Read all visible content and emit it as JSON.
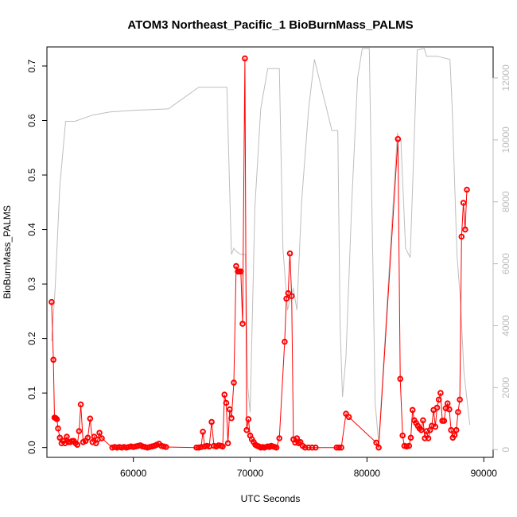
{
  "chart_data": {
    "type": "line",
    "title": "ATOM3 Northeast_Pacific_1 BioBurnMass_PALMS",
    "xlabel": "UTC Seconds",
    "ylabel": "BioBurnMass_PALMS",
    "xlim": [
      52600,
      90800
    ],
    "ylim": [
      -0.018,
      0.735
    ],
    "y2lim": [
      -250,
      13000
    ],
    "x_ticks": [
      60000,
      70000,
      80000,
      90000
    ],
    "y_ticks": [
      0.0,
      0.1,
      0.2,
      0.3,
      0.4,
      0.5,
      0.6,
      0.7
    ],
    "y2_ticks": [
      0,
      2000,
      4000,
      6000,
      8000,
      10000,
      12000
    ],
    "grid": false,
    "legend": "none",
    "colors": {
      "primary": "#ff0000",
      "secondary": "#bebebe"
    },
    "series": [
      {
        "axis": "left",
        "style": "line+points",
        "color": "#ff0000",
        "points": [
          [
            53000,
            0.267
          ],
          [
            53150,
            0.161
          ],
          [
            53250,
            0.055
          ],
          [
            53350,
            0.054
          ],
          [
            53450,
            0.052
          ],
          [
            53550,
            0.035
          ],
          [
            53700,
            0.018
          ],
          [
            53850,
            0.008
          ],
          [
            54000,
            0.012
          ],
          [
            54150,
            0.008
          ],
          [
            54300,
            0.02
          ],
          [
            54450,
            0.01
          ],
          [
            54600,
            0.01
          ],
          [
            54750,
            0.012
          ],
          [
            54900,
            0.012
          ],
          [
            55050,
            0.008
          ],
          [
            55200,
            0.005
          ],
          [
            55350,
            0.03
          ],
          [
            55500,
            0.079
          ],
          [
            55700,
            0.01
          ],
          [
            55900,
            0.012
          ],
          [
            56100,
            0.018
          ],
          [
            56300,
            0.053
          ],
          [
            56500,
            0.01
          ],
          [
            56650,
            0.02
          ],
          [
            56800,
            0.008
          ],
          [
            56950,
            0.015
          ],
          [
            57100,
            0.027
          ],
          [
            57300,
            0.017
          ],
          [
            58200,
            0.0
          ],
          [
            58400,
            0.001
          ],
          [
            58600,
            0.0
          ],
          [
            58800,
            0.001
          ],
          [
            59000,
            0.0
          ],
          [
            59200,
            0.001
          ],
          [
            59400,
            0.0
          ],
          [
            59600,
            0.001
          ],
          [
            59800,
            0.002
          ],
          [
            60000,
            0.001
          ],
          [
            60200,
            0.002
          ],
          [
            60400,
            0.003
          ],
          [
            60600,
            0.004
          ],
          [
            60800,
            0.002
          ],
          [
            61000,
            0.001
          ],
          [
            61200,
            0.0
          ],
          [
            61400,
            0.001
          ],
          [
            61600,
            0.002
          ],
          [
            61800,
            0.003
          ],
          [
            62000,
            0.005
          ],
          [
            62200,
            0.007
          ],
          [
            62400,
            0.003
          ],
          [
            62600,
            0.002
          ],
          [
            62800,
            0.001
          ],
          [
            65400,
            0.0
          ],
          [
            65600,
            0.0
          ],
          [
            65800,
            0.001
          ],
          [
            65950,
            0.029
          ],
          [
            66100,
            0.002
          ],
          [
            66300,
            0.003
          ],
          [
            66500,
            0.002
          ],
          [
            66700,
            0.047
          ],
          [
            66900,
            0.003
          ],
          [
            67100,
            0.002
          ],
          [
            67300,
            0.004
          ],
          [
            67500,
            0.003
          ],
          [
            67650,
            0.002
          ],
          [
            67800,
            0.097
          ],
          [
            67950,
            0.082
          ],
          [
            68100,
            0.008
          ],
          [
            68250,
            0.07
          ],
          [
            68400,
            0.054
          ],
          [
            68600,
            0.119
          ],
          [
            68800,
            0.333
          ],
          [
            68950,
            0.323
          ],
          [
            69050,
            0.323
          ],
          [
            69200,
            0.323
          ],
          [
            69350,
            0.227
          ],
          [
            69550,
            0.714
          ],
          [
            69700,
            0.032
          ],
          [
            69850,
            0.052
          ],
          [
            70000,
            0.022
          ],
          [
            70150,
            0.015
          ],
          [
            70300,
            0.01
          ],
          [
            70450,
            0.005
          ],
          [
            70600,
            0.003
          ],
          [
            70750,
            0.002
          ],
          [
            70900,
            0.0
          ],
          [
            71050,
            0.001
          ],
          [
            71200,
            0.0
          ],
          [
            71350,
            0.001
          ],
          [
            71500,
            0.002
          ],
          [
            71650,
            0.001
          ],
          [
            71800,
            0.003
          ],
          [
            71950,
            0.002
          ],
          [
            72100,
            0.001
          ],
          [
            72250,
            0.0
          ],
          [
            72500,
            0.017
          ],
          [
            72950,
            0.194
          ],
          [
            73100,
            0.273
          ],
          [
            73250,
            0.283
          ],
          [
            73400,
            0.356
          ],
          [
            73550,
            0.278
          ],
          [
            73700,
            0.015
          ],
          [
            73850,
            0.009
          ],
          [
            74000,
            0.017
          ],
          [
            74150,
            0.008
          ],
          [
            74300,
            0.01
          ],
          [
            74500,
            0.003
          ],
          [
            74700,
            0.0
          ],
          [
            75000,
            0.0
          ],
          [
            75300,
            0.0
          ],
          [
            75600,
            0.0
          ],
          [
            77400,
            0.0
          ],
          [
            77600,
            0.0
          ],
          [
            77800,
            0.0
          ],
          [
            78200,
            0.062
          ],
          [
            78450,
            0.056
          ],
          [
            80800,
            0.009
          ],
          [
            81000,
            0.0
          ],
          [
            82650,
            0.566
          ],
          [
            82850,
            0.126
          ],
          [
            83050,
            0.022
          ],
          [
            83200,
            0.003
          ],
          [
            83400,
            0.002
          ],
          [
            83600,
            0.003
          ],
          [
            83750,
            0.018
          ],
          [
            83900,
            0.069
          ],
          [
            84050,
            0.05
          ],
          [
            84200,
            0.045
          ],
          [
            84350,
            0.04
          ],
          [
            84500,
            0.035
          ],
          [
            84650,
            0.032
          ],
          [
            84800,
            0.05
          ],
          [
            84950,
            0.017
          ],
          [
            85100,
            0.03
          ],
          [
            85250,
            0.017
          ],
          [
            85400,
            0.032
          ],
          [
            85550,
            0.04
          ],
          [
            85700,
            0.069
          ],
          [
            85850,
            0.038
          ],
          [
            86000,
            0.073
          ],
          [
            86150,
            0.088
          ],
          [
            86300,
            0.1
          ],
          [
            86450,
            0.049
          ],
          [
            86600,
            0.049
          ],
          [
            86750,
            0.072
          ],
          [
            86900,
            0.081
          ],
          [
            87050,
            0.07
          ],
          [
            87200,
            0.032
          ],
          [
            87350,
            0.018
          ],
          [
            87500,
            0.023
          ],
          [
            87650,
            0.032
          ],
          [
            87800,
            0.065
          ],
          [
            87950,
            0.088
          ],
          [
            88100,
            0.387
          ],
          [
            88250,
            0.449
          ],
          [
            88400,
            0.4
          ],
          [
            88550,
            0.473
          ]
        ]
      },
      {
        "axis": "right",
        "style": "line",
        "color": "#bebebe",
        "points": [
          [
            53000,
            3500
          ],
          [
            53300,
            5200
          ],
          [
            53700,
            8500
          ],
          [
            54200,
            10600
          ],
          [
            55000,
            10600
          ],
          [
            56500,
            10800
          ],
          [
            58000,
            10900
          ],
          [
            60000,
            10950
          ],
          [
            63000,
            11000
          ],
          [
            65600,
            11700
          ],
          [
            68000,
            11700
          ],
          [
            68400,
            6300
          ],
          [
            68600,
            6500
          ],
          [
            68800,
            6400
          ],
          [
            69200,
            6300
          ],
          [
            69600,
            6300
          ],
          [
            69800,
            2000
          ],
          [
            70000,
            1200
          ],
          [
            70400,
            7800
          ],
          [
            70900,
            11000
          ],
          [
            71500,
            12300
          ],
          [
            72500,
            12300
          ],
          [
            72800,
            6500
          ],
          [
            73200,
            4500
          ],
          [
            73500,
            5000
          ],
          [
            73700,
            5200
          ],
          [
            74000,
            4500
          ],
          [
            74400,
            8000
          ],
          [
            75000,
            11000
          ],
          [
            75500,
            12600
          ],
          [
            77000,
            10300
          ],
          [
            77500,
            10300
          ],
          [
            77700,
            4000
          ],
          [
            77900,
            1700
          ],
          [
            78200,
            3000
          ],
          [
            78700,
            8000
          ],
          [
            79200,
            12000
          ],
          [
            79600,
            12950
          ],
          [
            80200,
            12950
          ],
          [
            80700,
            1500
          ],
          [
            81000,
            200
          ],
          [
            81500,
            3300
          ],
          [
            82000,
            6500
          ],
          [
            82600,
            10200
          ],
          [
            82900,
            10000
          ],
          [
            83300,
            6500
          ],
          [
            83700,
            6200
          ],
          [
            84000,
            9500
          ],
          [
            84300,
            12900
          ],
          [
            84900,
            12950
          ],
          [
            85100,
            12700
          ],
          [
            86000,
            12700
          ],
          [
            87100,
            12600
          ],
          [
            87300,
            11000
          ],
          [
            87700,
            6300
          ],
          [
            88000,
            4800
          ],
          [
            88300,
            2500
          ],
          [
            88800,
            800
          ]
        ]
      }
    ]
  }
}
